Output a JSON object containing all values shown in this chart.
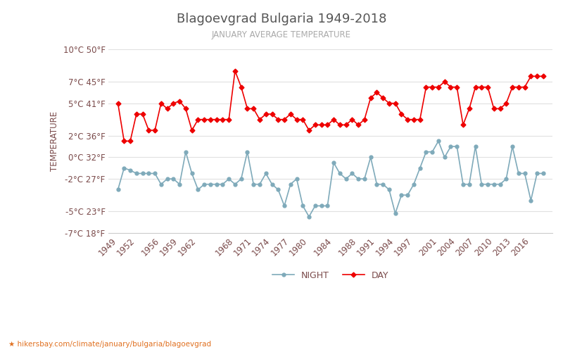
{
  "title": "Blagoevgrad Bulgaria 1949-2018",
  "subtitle": "JANUARY AVERAGE TEMPERATURE",
  "ylabel": "TEMPERATURE",
  "xlabel_url": "hikersbay.com/climate/january/bulgaria/blagoevgrad",
  "legend_night": "NIGHT",
  "legend_day": "DAY",
  "night_color": "#7faaba",
  "day_color": "#ee0000",
  "title_color": "#555555",
  "subtitle_color": "#aaaaaa",
  "axis_label_color": "#7a4a4a",
  "grid_color": "#e0e0e0",
  "background_color": "#ffffff",
  "ylim_min": -7,
  "ylim_max": 10,
  "yticks_c": [
    -7,
    -5,
    -2,
    0,
    2,
    5,
    7,
    10
  ],
  "yticks_f": [
    18,
    23,
    27,
    32,
    36,
    41,
    45,
    50
  ],
  "xtick_years": [
    1949,
    1952,
    1956,
    1959,
    1962,
    1968,
    1971,
    1974,
    1977,
    1980,
    1984,
    1988,
    1991,
    1994,
    1997,
    2001,
    2004,
    2007,
    2010,
    2013,
    2016
  ],
  "years": [
    1949,
    1950,
    1951,
    1952,
    1953,
    1954,
    1955,
    1956,
    1957,
    1958,
    1959,
    1960,
    1961,
    1962,
    1963,
    1964,
    1965,
    1966,
    1967,
    1968,
    1969,
    1970,
    1971,
    1972,
    1973,
    1974,
    1975,
    1976,
    1977,
    1978,
    1979,
    1980,
    1981,
    1982,
    1983,
    1984,
    1985,
    1986,
    1987,
    1988,
    1989,
    1990,
    1991,
    1992,
    1993,
    1994,
    1995,
    1996,
    1997,
    1998,
    1999,
    2000,
    2001,
    2002,
    2003,
    2004,
    2005,
    2006,
    2007,
    2008,
    2009,
    2010,
    2011,
    2012,
    2013,
    2014,
    2015,
    2016,
    2017,
    2018
  ],
  "day_temps": [
    5.0,
    1.5,
    1.5,
    4.0,
    4.0,
    2.5,
    2.5,
    5.0,
    4.5,
    5.0,
    5.2,
    4.5,
    2.5,
    3.5,
    3.5,
    3.5,
    3.5,
    3.5,
    3.5,
    8.0,
    6.5,
    4.5,
    4.5,
    3.5,
    4.0,
    4.0,
    3.5,
    3.5,
    4.0,
    3.5,
    3.5,
    2.5,
    3.0,
    3.0,
    3.0,
    3.5,
    3.0,
    3.0,
    3.5,
    3.0,
    3.5,
    5.5,
    6.0,
    5.5,
    5.0,
    5.0,
    4.0,
    3.5,
    3.5,
    3.5,
    6.5,
    6.5,
    6.5,
    7.0,
    6.5,
    6.5,
    3.0,
    4.5,
    6.5,
    6.5,
    6.5,
    4.5,
    4.5,
    5.0,
    6.5,
    6.5,
    6.5,
    7.5,
    7.5,
    7.5
  ],
  "night_temps": [
    -3.0,
    -1.0,
    -1.2,
    -1.5,
    -1.5,
    -1.5,
    -1.5,
    -2.5,
    -2.0,
    -2.0,
    -2.5,
    0.5,
    -1.5,
    -3.0,
    -2.5,
    -2.5,
    -2.5,
    -2.5,
    -2.0,
    -2.5,
    -2.0,
    0.5,
    -2.5,
    -2.5,
    -1.5,
    -2.5,
    -3.0,
    -4.5,
    -2.5,
    -2.0,
    -4.5,
    -5.5,
    -4.5,
    -4.5,
    -4.5,
    -0.5,
    -1.5,
    -2.0,
    -1.5,
    -2.0,
    -2.0,
    0.0,
    -2.5,
    -2.5,
    -3.0,
    -5.2,
    -3.5,
    -3.5,
    -2.5,
    -1.0,
    0.5,
    0.5,
    1.5,
    0.0,
    1.0,
    1.0,
    -2.5,
    -2.5,
    1.0,
    -2.5,
    -2.5,
    -2.5,
    -2.5,
    -2.0,
    1.0,
    -1.5,
    -1.5,
    -4.0,
    -1.5,
    -1.5
  ]
}
